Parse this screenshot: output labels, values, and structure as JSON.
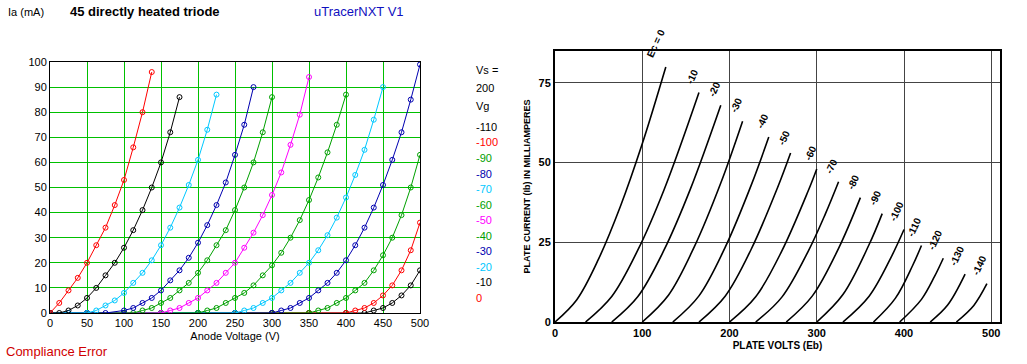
{
  "chart_data": [
    {
      "type": "line",
      "title": "45 directly heated triode",
      "subtitle": "uTracerNXT V1",
      "x_label": "Anode Voltage (V)",
      "y_label": "Ia (mA)",
      "annotations": [
        "Compliance Error"
      ],
      "legend_title": [
        "Vs =",
        "200",
        "Vg"
      ],
      "legend": "right",
      "marker": "circle",
      "grid": true,
      "xlim": [
        0,
        500
      ],
      "xticks": [
        0,
        50,
        100,
        150,
        200,
        250,
        300,
        350,
        400,
        450,
        500
      ],
      "ylim": [
        0,
        100
      ],
      "yticks": [
        0,
        10,
        20,
        30,
        40,
        50,
        60,
        70,
        80,
        90,
        100
      ],
      "series": [
        {
          "name": "-110",
          "color": "#000000",
          "x": [
            0,
            50,
            100,
            150,
            200,
            250,
            300,
            350,
            400,
            425,
            437.5,
            450,
            462.5,
            475,
            487.5,
            500
          ],
          "values": [
            0,
            0,
            0,
            0,
            0,
            0,
            0,
            0,
            0,
            0,
            1,
            2,
            4,
            7,
            11,
            17
          ]
        },
        {
          "name": "-100",
          "color": "#ff0000",
          "x": [
            0,
            50,
            100,
            150,
            200,
            250,
            300,
            350,
            400,
            412.5,
            425,
            437.5,
            450,
            462.5,
            475,
            487.5,
            500
          ],
          "values": [
            0,
            0,
            0,
            0,
            0,
            0,
            0,
            0,
            0,
            1,
            2,
            4,
            7,
            11,
            17,
            25,
            36
          ]
        },
        {
          "name": "-90",
          "color": "#00a000",
          "x": [
            0,
            50,
            100,
            150,
            200,
            250,
            300,
            350,
            362.5,
            375,
            387.5,
            400,
            412.5,
            425,
            437.5,
            450,
            462.5,
            475,
            487.5,
            500
          ],
          "values": [
            0,
            0,
            0,
            0,
            0,
            0,
            0,
            0,
            1,
            2,
            4,
            6,
            9,
            12,
            17,
            23,
            30,
            39,
            50,
            63
          ]
        },
        {
          "name": "-80",
          "color": "#0000b0",
          "x": [
            0,
            50,
            100,
            150,
            200,
            250,
            300,
            312.5,
            325,
            337.5,
            350,
            362.5,
            375,
            387.5,
            400,
            412.5,
            425,
            437.5,
            450,
            462.5,
            475,
            487.5,
            500
          ],
          "values": [
            0,
            0,
            0,
            0,
            0,
            0,
            0,
            1,
            2,
            4,
            6,
            9,
            12,
            16,
            21,
            27,
            34,
            42,
            51,
            61,
            72,
            85,
            99
          ]
        },
        {
          "name": "-70",
          "color": "#00c8ff",
          "x": [
            0,
            50,
            100,
            150,
            200,
            250,
            262.5,
            275,
            287.5,
            300,
            312.5,
            325,
            337.5,
            350,
            362.5,
            375,
            387.5,
            400,
            412.5,
            425,
            437.5,
            450
          ],
          "values": [
            0,
            0,
            0,
            0,
            0,
            0,
            1,
            2,
            4,
            6,
            9,
            12,
            16,
            20,
            25,
            31,
            38,
            46,
            55,
            65,
            77,
            90
          ]
        },
        {
          "name": "-60",
          "color": "#00a000",
          "x": [
            0,
            50,
            100,
            150,
            200,
            212.5,
            225,
            237.5,
            250,
            262.5,
            275,
            287.5,
            300,
            312.5,
            325,
            337.5,
            350,
            362.5,
            375,
            387.5,
            400
          ],
          "values": [
            0,
            0,
            0,
            0,
            0,
            1,
            2,
            4,
            6,
            8,
            11,
            15,
            19,
            24,
            30,
            37,
            45,
            54,
            64,
            75,
            87
          ]
        },
        {
          "name": "-50",
          "color": "#ff00ff",
          "x": [
            0,
            50,
            100,
            150,
            162.5,
            175,
            187.5,
            200,
            212.5,
            225,
            237.5,
            250,
            262.5,
            275,
            287.5,
            300,
            312.5,
            325,
            337.5,
            350
          ],
          "values": [
            0,
            0,
            0,
            0,
            1,
            2,
            4,
            6,
            9,
            12,
            16,
            20,
            26,
            32,
            39,
            47,
            56,
            67,
            79,
            94
          ]
        },
        {
          "name": "-40",
          "color": "#00a000",
          "x": [
            0,
            50,
            100,
            112.5,
            125,
            137.5,
            150,
            162.5,
            175,
            187.5,
            200,
            212.5,
            225,
            237.5,
            250,
            262.5,
            275,
            287.5,
            300
          ],
          "values": [
            0,
            0,
            0,
            0,
            1,
            2,
            4,
            6,
            9,
            12,
            16,
            21,
            27,
            33,
            41,
            50,
            60,
            72,
            86
          ]
        },
        {
          "name": "-30",
          "color": "#0000b0",
          "x": [
            0,
            25,
            50,
            75,
            100,
            112.5,
            125,
            137.5,
            150,
            162.5,
            175,
            187.5,
            200,
            212.5,
            225,
            237.5,
            250,
            262.5,
            275
          ],
          "values": [
            0,
            0,
            0,
            0,
            1,
            2,
            4,
            6,
            9,
            13,
            17,
            22,
            28,
            35,
            43,
            52,
            63,
            75,
            90
          ]
        },
        {
          "name": "-20",
          "color": "#00c8ff",
          "x": [
            0,
            25,
            50,
            62.5,
            75,
            87.5,
            100,
            112.5,
            125,
            137.5,
            150,
            162.5,
            175,
            187.5,
            200,
            212.5,
            225
          ],
          "values": [
            0,
            0,
            0,
            1,
            3,
            5,
            8,
            12,
            16,
            21,
            27,
            34,
            42,
            51,
            61,
            73,
            87
          ]
        },
        {
          "name": "-10",
          "color": "#000000",
          "x": [
            0,
            12.5,
            25,
            37.5,
            50,
            62.5,
            75,
            87.5,
            100,
            112.5,
            125,
            137.5,
            150,
            162.5,
            175
          ],
          "values": [
            0,
            0,
            1,
            3,
            6,
            10,
            15,
            20,
            26,
            33,
            41,
            50,
            60,
            72,
            86
          ]
        },
        {
          "name": "0",
          "color": "#ff0000",
          "x": [
            0,
            12.5,
            25,
            37.5,
            50,
            62.5,
            75,
            87.5,
            100,
            112.5,
            125,
            137.5
          ],
          "values": [
            0,
            4,
            9,
            14,
            20,
            27,
            34,
            43,
            53,
            66,
            80,
            96
          ]
        }
      ]
    },
    {
      "type": "line",
      "x_label": "PLATE VOLTS (Eb)",
      "y_label": "PLATE CURRENT (Ib) IN MILLIAMPERES",
      "color": "#000000",
      "grid": true,
      "xlim": [
        0,
        510
      ],
      "xticks": [
        0,
        100,
        200,
        300,
        400,
        500
      ],
      "ylim": [
        0,
        85
      ],
      "yticks": [
        0,
        25,
        50,
        75
      ],
      "series": [
        {
          "name": "Ec = 0",
          "x": [
            0,
            25,
            50,
            75,
            100,
            127
          ],
          "values": [
            0,
            7,
            19.8,
            36.3,
            55.9,
            80
          ]
        },
        {
          "name": "-10",
          "x": [
            35,
            65,
            95,
            125,
            165
          ],
          "values": [
            0,
            8,
            22.6,
            41.5,
            72
          ]
        },
        {
          "name": "-20",
          "x": [
            65,
            95,
            125,
            155,
            190
          ],
          "values": [
            0,
            8,
            22.6,
            41.6,
            68
          ]
        },
        {
          "name": "-30",
          "x": [
            100,
            130,
            160,
            190,
            215
          ],
          "values": [
            0,
            8.4,
            23.8,
            43.6,
            63
          ]
        },
        {
          "name": "-40",
          "x": [
            135,
            165,
            195,
            225,
            245
          ],
          "values": [
            0,
            8.2,
            23.4,
            43,
            58
          ]
        },
        {
          "name": "-50",
          "x": [
            165,
            195,
            225,
            255,
            270
          ],
          "values": [
            0,
            8.1,
            22.9,
            42.1,
            53
          ]
        },
        {
          "name": "-60",
          "x": [
            200,
            230,
            260,
            290,
            300
          ],
          "values": [
            0,
            7.9,
            22.3,
            41,
            48
          ]
        },
        {
          "name": "-70",
          "x": [
            230,
            260,
            290,
            310,
            325
          ],
          "values": [
            0,
            7.8,
            22.1,
            34,
            44
          ]
        },
        {
          "name": "-80",
          "x": [
            265,
            295,
            325,
            350
          ],
          "values": [
            0,
            8.2,
            23.1,
            39
          ]
        },
        {
          "name": "-90",
          "x": [
            300,
            330,
            360,
            375
          ],
          "values": [
            0,
            8.6,
            24.3,
            34
          ]
        },
        {
          "name": "-100",
          "x": [
            330,
            360,
            385,
            400
          ],
          "values": [
            0,
            8.1,
            20.2,
            29
          ]
        },
        {
          "name": "-110",
          "x": [
            365,
            390,
            410,
            420
          ],
          "values": [
            0,
            7.4,
            17.8,
            24
          ]
        },
        {
          "name": "-120",
          "x": [
            395,
            420,
            435,
            445
          ],
          "values": [
            0,
            7.1,
            14.3,
            20
          ]
        },
        {
          "name": "-130",
          "x": [
            430,
            450,
            470
          ],
          "values": [
            0,
            5.3,
            15
          ]
        },
        {
          "name": "-140",
          "x": [
            460,
            480,
            495
          ],
          "values": [
            0,
            5.2,
            12
          ]
        }
      ]
    }
  ]
}
